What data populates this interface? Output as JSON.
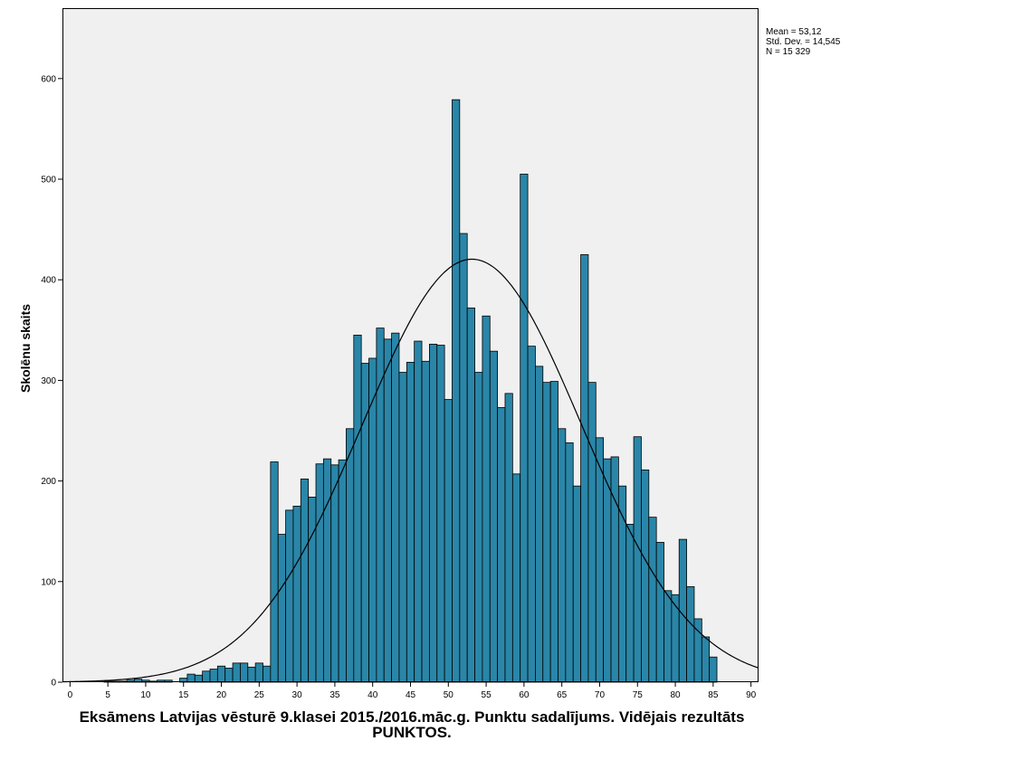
{
  "chart_data": {
    "type": "bar",
    "title": "",
    "xlabel": "Eksāmens Latvijas vēsturē 9.klasei 2015./2016.māc.g. Punktu sadalījums. Vidējais rezultāts PUNKTOS.",
    "ylabel": "Skolēnu skaits",
    "xlim": [
      -1,
      91
    ],
    "ylim": [
      0,
      670
    ],
    "x_ticks": [
      0,
      5,
      10,
      15,
      20,
      25,
      30,
      35,
      40,
      45,
      50,
      55,
      60,
      65,
      70,
      75,
      80,
      85,
      90
    ],
    "y_ticks": [
      0,
      100,
      200,
      300,
      400,
      500,
      600
    ],
    "bins": [
      0,
      1,
      2,
      3,
      4,
      5,
      6,
      7,
      8,
      9,
      10,
      11,
      12,
      13,
      14,
      15,
      16,
      17,
      18,
      19,
      20,
      21,
      22,
      23,
      24,
      25,
      26,
      27,
      28,
      29,
      30,
      31,
      32,
      33,
      34,
      35,
      36,
      37,
      38,
      39,
      40,
      41,
      42,
      43,
      44,
      45,
      46,
      47,
      48,
      49,
      50,
      51,
      52,
      53,
      54,
      55,
      56,
      57,
      58,
      59,
      60,
      61,
      62,
      63,
      64,
      65,
      66,
      67,
      68,
      69,
      70,
      71,
      72,
      73,
      74,
      75,
      76,
      77,
      78,
      79,
      80,
      81,
      82,
      83,
      84,
      85
    ],
    "values": [
      0,
      0,
      0,
      0,
      0,
      1,
      1,
      1,
      2,
      3,
      2,
      1,
      2,
      2,
      0,
      4,
      8,
      7,
      11,
      13,
      16,
      14,
      19,
      19,
      15,
      19,
      16,
      219,
      147,
      171,
      175,
      202,
      184,
      217,
      222,
      216,
      221,
      252,
      345,
      317,
      322,
      352,
      341,
      347,
      308,
      318,
      339,
      319,
      336,
      335,
      281,
      579,
      446,
      372,
      308,
      364,
      329,
      273,
      287,
      207,
      505,
      334,
      314,
      298,
      299,
      252,
      238,
      195,
      425,
      298,
      243,
      222,
      224,
      195,
      157,
      244,
      211,
      164,
      139,
      91,
      87,
      142,
      95,
      63,
      45,
      25
    ],
    "normal_curve": {
      "mean": 53.12,
      "std_dev": 14.545,
      "n": 15329,
      "bin_width": 1
    },
    "bar_color": "#2a86a8",
    "bar_edge_color": "#000000",
    "background_color": "#f0f0f0",
    "stats": {
      "mean": "Mean = 53,12",
      "std_dev": "Std. Dev. = 14,545",
      "n": "N = 15 329"
    }
  }
}
